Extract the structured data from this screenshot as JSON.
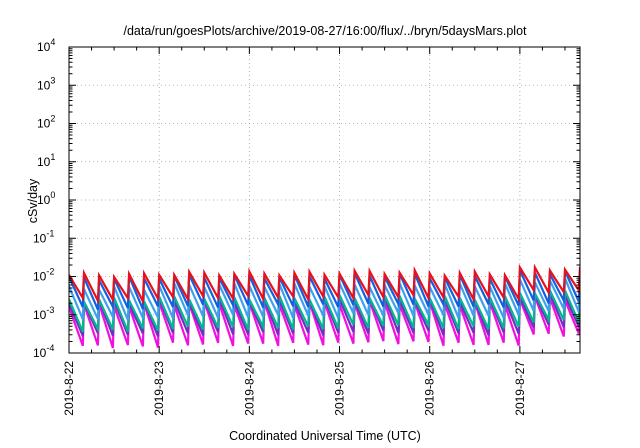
{
  "chart_data": {
    "type": "line",
    "title": "/data/run/goesPlots/archive/2019-08-27/16:00/flux/../bryn/5daysMars.plot",
    "xlabel": "Coordinated Universal Time (UTC)",
    "ylabel": "cSv/day",
    "yscale": "log",
    "ylim": [
      0.0001,
      10000
    ],
    "ytick_labels": [
      {
        "base": "10",
        "exp": "-4",
        "value": 0.0001
      },
      {
        "base": "10",
        "exp": "-3",
        "value": 0.001
      },
      {
        "base": "10",
        "exp": "-2",
        "value": 0.01
      },
      {
        "base": "10",
        "exp": "-1",
        "value": 0.1
      },
      {
        "base": "10",
        "exp": "0",
        "value": 1
      },
      {
        "base": "10",
        "exp": "1",
        "value": 10
      },
      {
        "base": "10",
        "exp": "2",
        "value": 100
      },
      {
        "base": "10",
        "exp": "3",
        "value": 1000
      },
      {
        "base": "10",
        "exp": "4",
        "value": 10000
      }
    ],
    "xlim": [
      "2019-08-22",
      "2019-08-27 16:00"
    ],
    "xtick_labels": [
      "2019-8-22",
      "2019-8-23",
      "2019-8-24",
      "2019-8-25",
      "2019-8-26",
      "2019-8-27"
    ],
    "grid": true,
    "sawtooth_period_hours": 4,
    "series": [
      {
        "color": "#e8101c",
        "peak": [
          0.011,
          0.012,
          0.012,
          0.013,
          0.012,
          0.016
        ],
        "trough": [
          0.0025,
          0.0028,
          0.0028,
          0.003,
          0.0028,
          0.004
        ]
      },
      {
        "color": "#1060e0",
        "peak": [
          0.009,
          0.01,
          0.01,
          0.011,
          0.01,
          0.013
        ],
        "trough": [
          0.0015,
          0.0017,
          0.0017,
          0.0018,
          0.0017,
          0.0022
        ]
      },
      {
        "color": "#40a0f0",
        "peak": [
          0.005,
          0.006,
          0.006,
          0.006,
          0.006,
          0.008
        ],
        "trough": [
          0.0008,
          0.0009,
          0.0009,
          0.001,
          0.0009,
          0.0013
        ]
      },
      {
        "color": "#00b890",
        "peak": [
          0.0025,
          0.0028,
          0.0028,
          0.003,
          0.0028,
          0.004
        ],
        "trough": [
          0.0004,
          0.00045,
          0.00045,
          0.0005,
          0.00045,
          0.0007
        ]
      },
      {
        "color": "#7030c0",
        "peak": [
          0.0022,
          0.0024,
          0.0024,
          0.0026,
          0.0024,
          0.0033
        ],
        "trough": [
          0.0003,
          0.00032,
          0.00032,
          0.00035,
          0.00032,
          0.0005
        ]
      },
      {
        "color": "#f010e0",
        "peak": [
          0.0018,
          0.002,
          0.002,
          0.0021,
          0.002,
          0.0027
        ],
        "trough": [
          0.00015,
          0.00017,
          0.00017,
          0.00019,
          0.00017,
          0.0003
        ]
      }
    ]
  }
}
